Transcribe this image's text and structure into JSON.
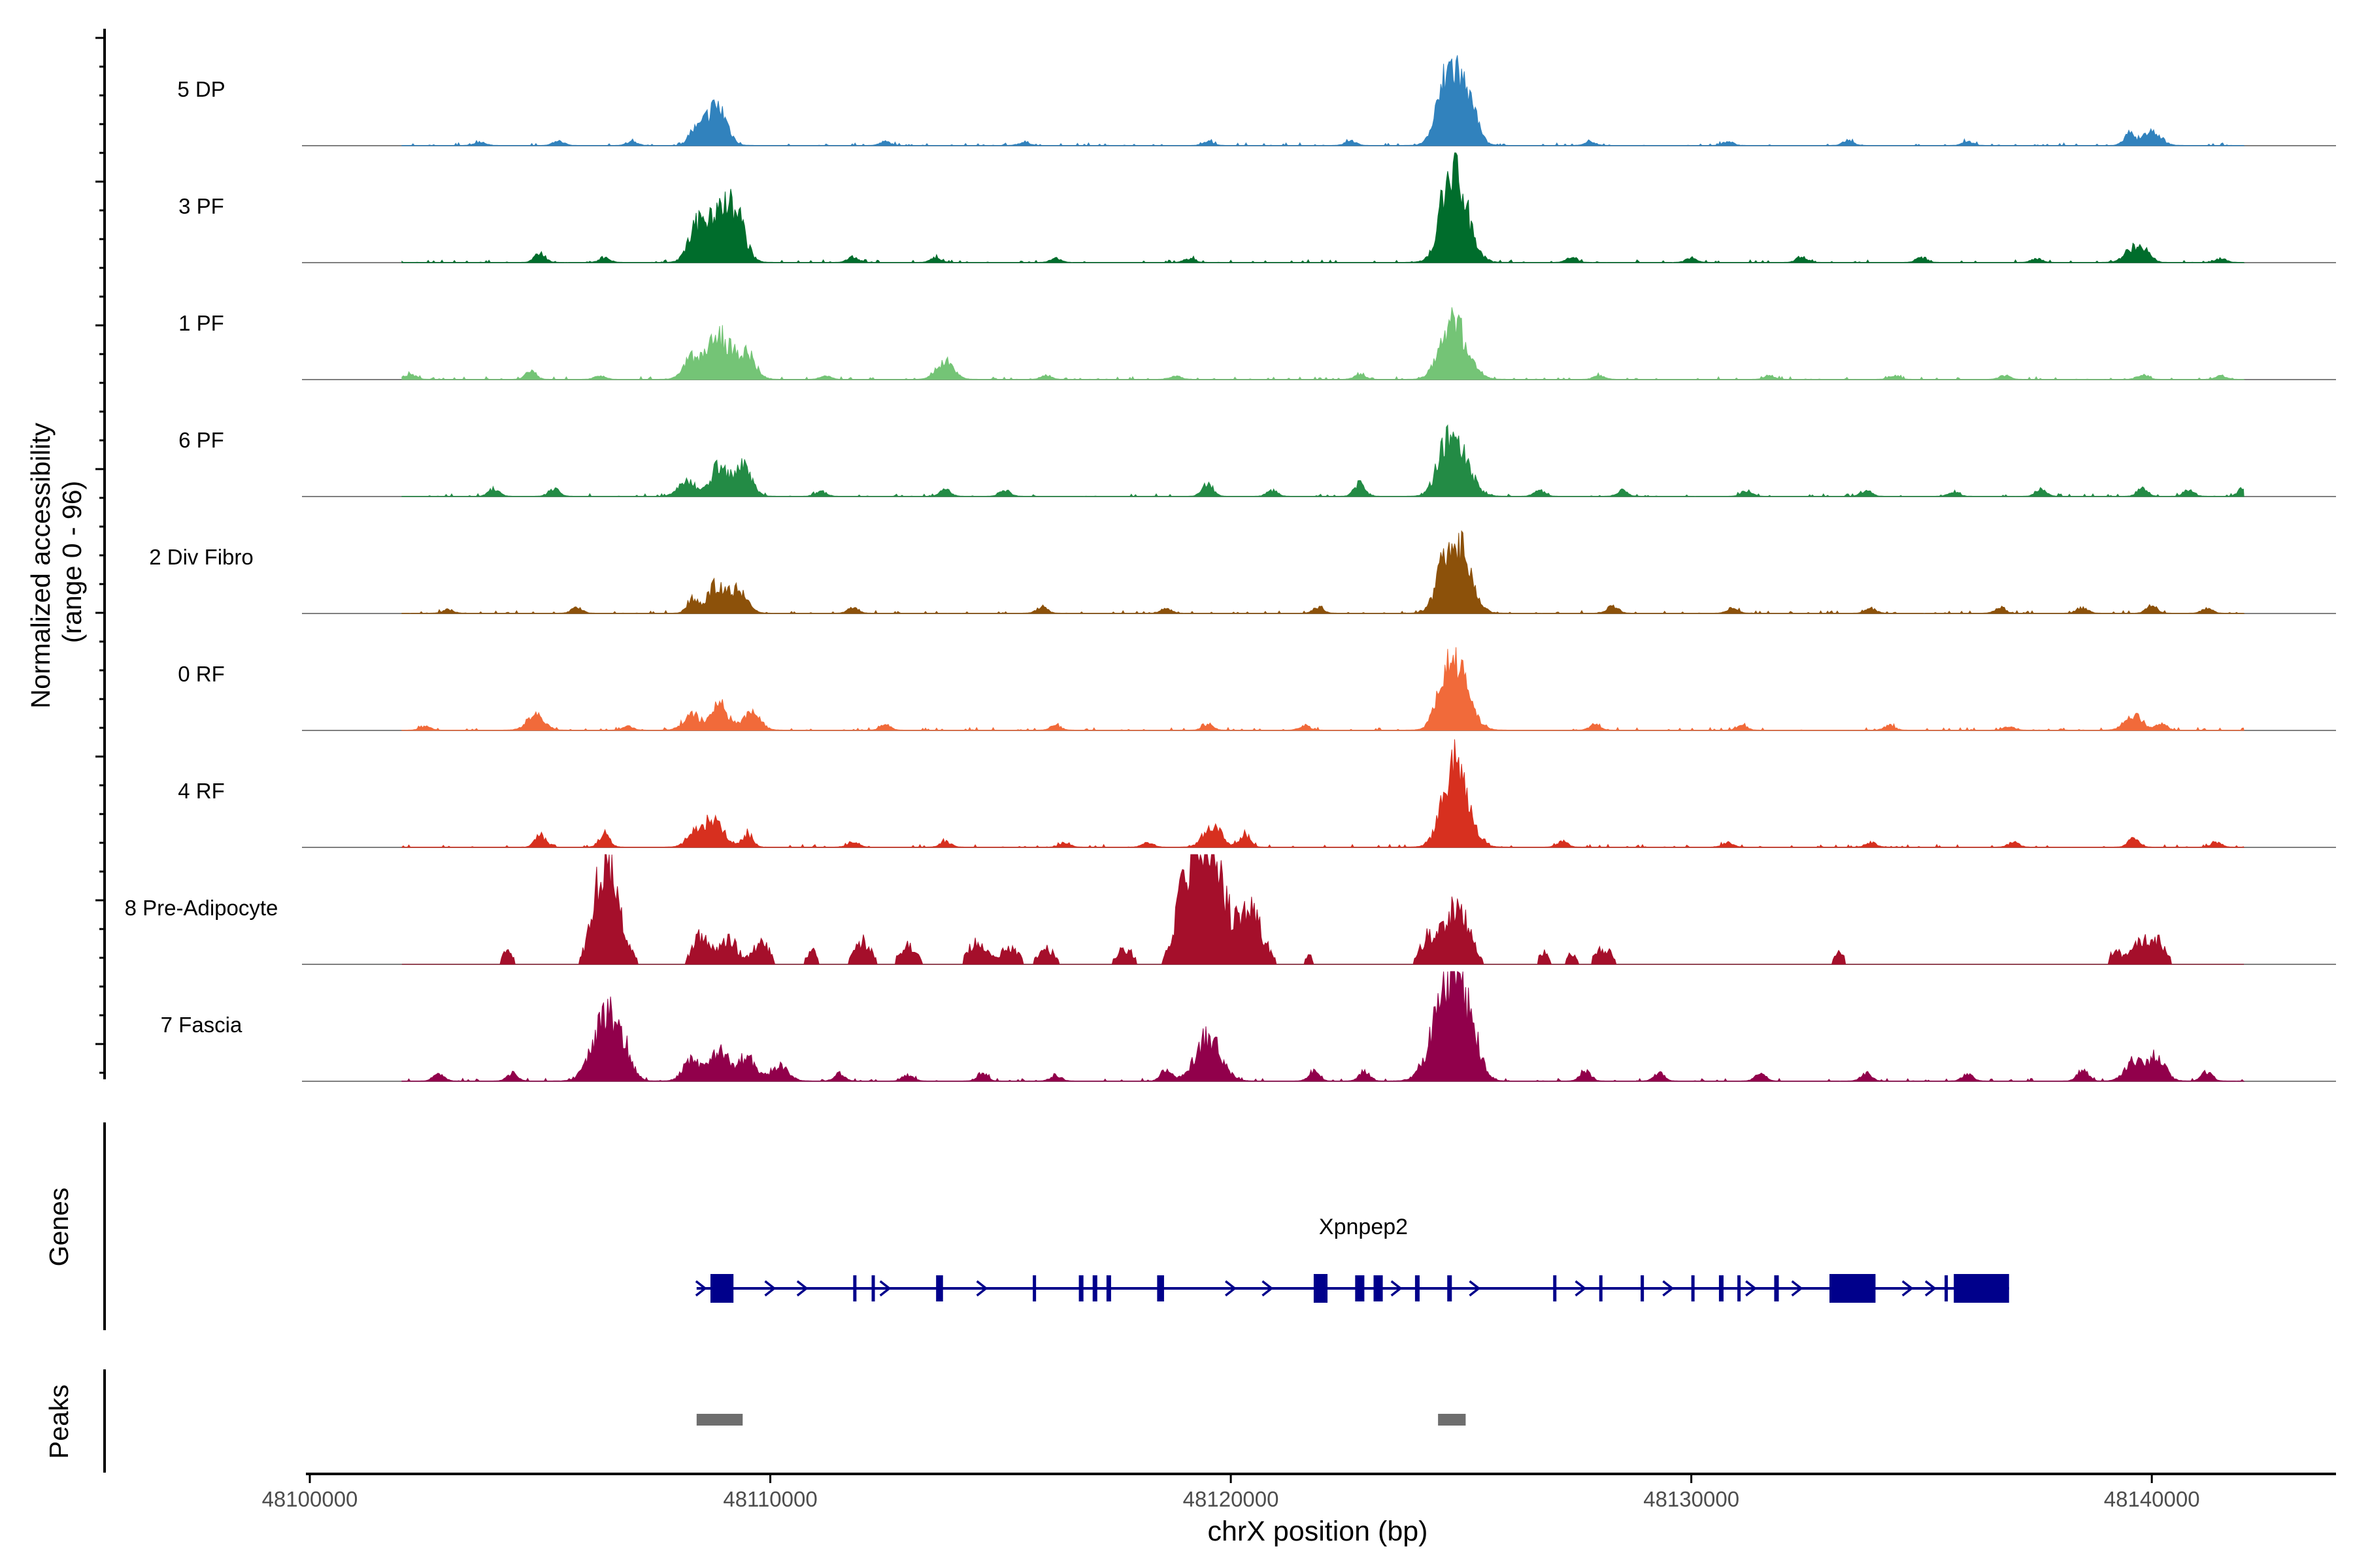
{
  "chart_data": {
    "type": "area",
    "ylabel": "Normalized accessibility\n(range 0 - 96)",
    "ylabel_lines": [
      "Normalized accessibility",
      "(range 0 - 96)"
    ],
    "y_range": [
      0,
      96
    ],
    "xlabel": "chrX position (bp)",
    "xlim": [
      48100000,
      48144000
    ],
    "x_ticks": [
      48100000,
      48110000,
      48120000,
      48130000,
      48140000
    ],
    "x_tick_labels": [
      "48100000",
      "48110000",
      "48120000",
      "48130000",
      "48140000"
    ],
    "data_range": [
      48102000,
      48142000
    ],
    "series": [
      {
        "name": "5 DP",
        "color": "#3182bd",
        "peaks": [
          [
            48108900,
            34
          ],
          [
            48108600,
            20
          ],
          [
            48108300,
            10
          ],
          [
            48124900,
            75
          ],
          [
            48124600,
            24
          ],
          [
            48125300,
            10
          ],
          [
            48140000,
            16
          ],
          [
            48139500,
            12
          ],
          [
            48103700,
            4
          ],
          [
            48105400,
            5
          ],
          [
            48107000,
            4
          ],
          [
            48112500,
            4
          ],
          [
            48115500,
            3
          ],
          [
            48119500,
            4
          ],
          [
            48122600,
            5
          ],
          [
            48127800,
            4
          ],
          [
            48130800,
            4
          ],
          [
            48133400,
            5
          ],
          [
            48136000,
            4
          ]
        ]
      },
      {
        "name": "3 PF",
        "color": "#006d2c",
        "peaks": [
          [
            48108900,
            58
          ],
          [
            48108400,
            30
          ],
          [
            48109300,
            32
          ],
          [
            48124900,
            78
          ],
          [
            48124700,
            30
          ],
          [
            48105000,
            10
          ],
          [
            48139600,
            16
          ],
          [
            48139900,
            10
          ],
          [
            48106400,
            5
          ],
          [
            48111800,
            6
          ],
          [
            48113600,
            5
          ],
          [
            48116200,
            4
          ],
          [
            48119100,
            4
          ],
          [
            48127400,
            5
          ],
          [
            48130000,
            5
          ],
          [
            48132400,
            6
          ],
          [
            48135000,
            5
          ],
          [
            48137500,
            4
          ],
          [
            48141500,
            4
          ]
        ]
      },
      {
        "name": "1 PF",
        "color": "#74c476",
        "peaks": [
          [
            48108900,
            44
          ],
          [
            48108300,
            20
          ],
          [
            48109500,
            24
          ],
          [
            48124900,
            52
          ],
          [
            48124600,
            16
          ],
          [
            48113800,
            18
          ],
          [
            48102200,
            5
          ],
          [
            48104800,
            8
          ],
          [
            48106300,
            4
          ],
          [
            48111200,
            4
          ],
          [
            48116000,
            4
          ],
          [
            48118800,
            4
          ],
          [
            48122800,
            5
          ],
          [
            48128000,
            4
          ],
          [
            48131700,
            4
          ],
          [
            48134400,
            4
          ],
          [
            48136800,
            4
          ],
          [
            48139800,
            5
          ],
          [
            48141500,
            4
          ]
        ]
      },
      {
        "name": "6 PF",
        "color": "#238b45",
        "peaks": [
          [
            48108900,
            32
          ],
          [
            48109400,
            30
          ],
          [
            48108200,
            16
          ],
          [
            48124900,
            55
          ],
          [
            48124600,
            20
          ],
          [
            48122800,
            14
          ],
          [
            48119500,
            14
          ],
          [
            48142000,
            10
          ],
          [
            48104000,
            8
          ],
          [
            48105300,
            8
          ],
          [
            48113800,
            7
          ],
          [
            48115100,
            6
          ],
          [
            48120900,
            6
          ],
          [
            48126700,
            6
          ],
          [
            48128500,
            6
          ],
          [
            48131200,
            6
          ],
          [
            48133800,
            6
          ],
          [
            48135700,
            5
          ],
          [
            48137600,
            8
          ],
          [
            48139800,
            8
          ],
          [
            48140800,
            7
          ],
          [
            48111100,
            5
          ]
        ]
      },
      {
        "name": "2 Div Fibro",
        "color": "#8c510a",
        "peaks": [
          [
            48108800,
            28
          ],
          [
            48109300,
            26
          ],
          [
            48108300,
            14
          ],
          [
            48124900,
            74
          ],
          [
            48124600,
            16
          ],
          [
            48128300,
            8
          ],
          [
            48140000,
            8
          ],
          [
            48105800,
            6
          ],
          [
            48111800,
            6
          ],
          [
            48115900,
            7
          ],
          [
            48118600,
            5
          ],
          [
            48121900,
            6
          ],
          [
            48130900,
            6
          ],
          [
            48133900,
            5
          ],
          [
            48136700,
            6
          ],
          [
            48138500,
            6
          ],
          [
            48141200,
            5
          ],
          [
            48103000,
            4
          ]
        ]
      },
      {
        "name": "0 RF",
        "color": "#f16a3a",
        "peaks": [
          [
            48108900,
            26
          ],
          [
            48108300,
            16
          ],
          [
            48109600,
            18
          ],
          [
            48124900,
            65
          ],
          [
            48124600,
            18
          ],
          [
            48104900,
            16
          ],
          [
            48139600,
            16
          ],
          [
            48140200,
            8
          ],
          [
            48112500,
            6
          ],
          [
            48116200,
            5
          ],
          [
            48119500,
            6
          ],
          [
            48121600,
            5
          ],
          [
            48127900,
            6
          ],
          [
            48131100,
            5
          ],
          [
            48134300,
            5
          ],
          [
            48136900,
            4
          ],
          [
            48102500,
            4
          ],
          [
            48106900,
            4
          ]
        ]
      },
      {
        "name": "4 RF",
        "color": "#d7301f",
        "peaks": [
          [
            48108800,
            30
          ],
          [
            48108400,
            18
          ],
          [
            48109500,
            14
          ],
          [
            48124900,
            75
          ],
          [
            48124700,
            18
          ],
          [
            48119600,
            24
          ],
          [
            48120300,
            14
          ],
          [
            48106400,
            14
          ],
          [
            48105000,
            12
          ],
          [
            48139600,
            10
          ],
          [
            48111800,
            6
          ],
          [
            48113800,
            6
          ],
          [
            48116400,
            5
          ],
          [
            48118200,
            5
          ],
          [
            48127200,
            6
          ],
          [
            48130800,
            5
          ],
          [
            48133900,
            5
          ],
          [
            48137000,
            5
          ],
          [
            48141400,
            5
          ]
        ]
      },
      {
        "name": "8 Pre-Adipocyte",
        "color": "#a50f2b",
        "peaks": [
          [
            48119600,
            96
          ],
          [
            48119300,
            80
          ],
          [
            48120400,
            58
          ],
          [
            48118900,
            40
          ],
          [
            48106500,
            80
          ],
          [
            48106300,
            40
          ],
          [
            48108500,
            30
          ],
          [
            48109100,
            26
          ],
          [
            48109800,
            22
          ],
          [
            48124900,
            60
          ],
          [
            48124300,
            26
          ],
          [
            48112000,
            24
          ],
          [
            48113000,
            20
          ],
          [
            48114500,
            26
          ],
          [
            48115200,
            18
          ],
          [
            48116000,
            16
          ],
          [
            48117700,
            16
          ],
          [
            48104300,
            14
          ],
          [
            48110900,
            14
          ],
          [
            48128100,
            16
          ],
          [
            48127400,
            12
          ],
          [
            48126800,
            12
          ],
          [
            48133200,
            12
          ],
          [
            48139700,
            22
          ],
          [
            48140100,
            24
          ],
          [
            48139200,
            14
          ],
          [
            48121700,
            8
          ]
        ]
      },
      {
        "name": "7 Fascia",
        "color": "#91004b",
        "peaks": [
          [
            48106400,
            65
          ],
          [
            48106800,
            28
          ],
          [
            48108900,
            34
          ],
          [
            48108300,
            22
          ],
          [
            48109500,
            26
          ],
          [
            48110200,
            16
          ],
          [
            48124900,
            96
          ],
          [
            48124500,
            44
          ],
          [
            48125300,
            20
          ],
          [
            48119500,
            48
          ],
          [
            48118600,
            12
          ],
          [
            48121800,
            10
          ],
          [
            48122900,
            10
          ],
          [
            48140100,
            26
          ],
          [
            48139600,
            22
          ],
          [
            48138500,
            12
          ],
          [
            48141200,
            10
          ],
          [
            48102800,
            8
          ],
          [
            48104400,
            8
          ],
          [
            48111500,
            8
          ],
          [
            48113000,
            6
          ],
          [
            48114600,
            8
          ],
          [
            48116200,
            6
          ],
          [
            48127700,
            10
          ],
          [
            48129300,
            8
          ],
          [
            48131500,
            8
          ],
          [
            48133800,
            8
          ],
          [
            48136000,
            8
          ]
        ]
      }
    ],
    "genes_track_label": "Genes",
    "gene": {
      "name": "Xpnpep2",
      "start": 48108400,
      "end": 48136900,
      "strand": "+",
      "color": "#00008b",
      "exons": [
        [
          48108700,
          48109200
        ],
        [
          48111800,
          48111850
        ],
        [
          48112200,
          48112250
        ],
        [
          48113600,
          48113750
        ],
        [
          48115700,
          48115750
        ],
        [
          48116700,
          48116800
        ],
        [
          48117000,
          48117100
        ],
        [
          48117300,
          48117400
        ],
        [
          48118400,
          48118550
        ],
        [
          48121800,
          48122100
        ],
        [
          48122700,
          48122900
        ],
        [
          48123100,
          48123300
        ],
        [
          48124000,
          48124100
        ],
        [
          48124700,
          48124800
        ],
        [
          48127000,
          48127050
        ],
        [
          48128000,
          48128050
        ],
        [
          48128900,
          48128950
        ],
        [
          48130000,
          48130050
        ],
        [
          48130600,
          48130700
        ],
        [
          48131000,
          48131050
        ],
        [
          48131800,
          48131900
        ],
        [
          48133000,
          48134000
        ],
        [
          48135500,
          48135550
        ],
        [
          48135700,
          48136900
        ]
      ],
      "arrows": [
        48108500,
        48110000,
        48110700,
        48112500,
        48114600,
        48120000,
        48120800,
        48123600,
        48125300,
        48127600,
        48129500,
        48131300,
        48132300,
        48134700,
        48135200
      ]
    },
    "peaks_track_label": "Peaks",
    "peak_regions": [
      [
        48108400,
        48109400
      ],
      [
        48124500,
        48125100
      ]
    ]
  }
}
